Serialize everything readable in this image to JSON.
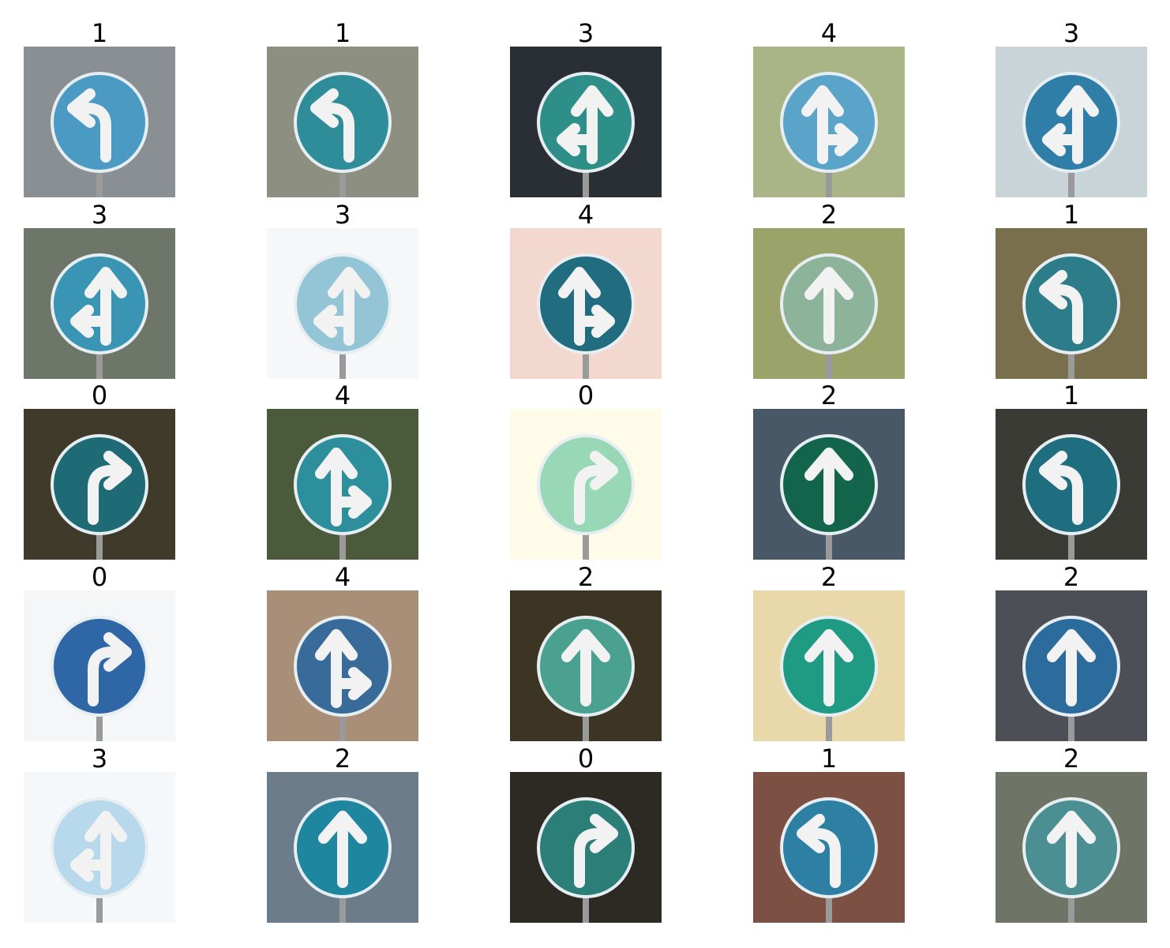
{
  "colors": {
    "sign_blue": "#3d8fb0",
    "sign_teal": "#2f8b94",
    "arrow": "#f2f2f2"
  },
  "tiles": [
    {
      "label": "1",
      "arrow": "left-turn",
      "bg": "#8a8f93",
      "sign": "#4a9ac4"
    },
    {
      "label": "1",
      "arrow": "left-turn",
      "bg": "#8d8f80",
      "sign": "#2f8d99"
    },
    {
      "label": "3",
      "arrow": "straight-left",
      "bg": "#2a2f35",
      "sign": "#2e8f88"
    },
    {
      "label": "4",
      "arrow": "straight-right",
      "bg": "#a9b487",
      "sign": "#5aa3c9"
    },
    {
      "label": "3",
      "arrow": "straight-left",
      "bg": "#c9d4d8",
      "sign": "#2f7ea7"
    },
    {
      "label": "3",
      "arrow": "straight-left",
      "bg": "#6d7668",
      "sign": "#3a95b4"
    },
    {
      "label": "3",
      "arrow": "straight-left",
      "bg": "#f6f7f8",
      "sign": "#93c5d7"
    },
    {
      "label": "4",
      "arrow": "straight-right",
      "bg": "#f3d8cf",
      "sign": "#216c7e"
    },
    {
      "label": "2",
      "arrow": "straight",
      "bg": "#9aa46a",
      "sign": "#8eb39b"
    },
    {
      "label": "1",
      "arrow": "left-turn",
      "bg": "#7a6f4c",
      "sign": "#2c7c89"
    },
    {
      "label": "0",
      "arrow": "right-turn",
      "bg": "#3f3a2a",
      "sign": "#1f6b75"
    },
    {
      "label": "4",
      "arrow": "straight-right",
      "bg": "#4a5a3a",
      "sign": "#2d8f9c"
    },
    {
      "label": "0",
      "arrow": "right-turn",
      "bg": "#fffbe9",
      "sign": "#98d8b6"
    },
    {
      "label": "2",
      "arrow": "straight",
      "bg": "#495867",
      "sign": "#12644b"
    },
    {
      "label": "1",
      "arrow": "left-turn",
      "bg": "#3a3b35",
      "sign": "#1f6e7f"
    },
    {
      "label": "0",
      "arrow": "right-turn",
      "bg": "#f4f6f8",
      "sign": "#2f66a6"
    },
    {
      "label": "4",
      "arrow": "straight-right",
      "bg": "#a98f77",
      "sign": "#396b9a"
    },
    {
      "label": "2",
      "arrow": "straight",
      "bg": "#3c3524",
      "sign": "#4aa18f"
    },
    {
      "label": "2",
      "arrow": "straight",
      "bg": "#e9d8a9",
      "sign": "#1f9b84"
    },
    {
      "label": "2",
      "arrow": "straight",
      "bg": "#4d4f57",
      "sign": "#2c6c9c"
    },
    {
      "label": "3",
      "arrow": "straight-left",
      "bg": "#f5f8fb",
      "sign": "#b8d8ec"
    },
    {
      "label": "2",
      "arrow": "straight",
      "bg": "#6d7c8b",
      "sign": "#1f86a0"
    },
    {
      "label": "0",
      "arrow": "right-turn",
      "bg": "#2d2a24",
      "sign": "#2c7f78"
    },
    {
      "label": "1",
      "arrow": "left-turn",
      "bg": "#7c5143",
      "sign": "#2d80a4"
    },
    {
      "label": "2",
      "arrow": "straight",
      "bg": "#6e7466",
      "sign": "#4b8f93"
    }
  ]
}
